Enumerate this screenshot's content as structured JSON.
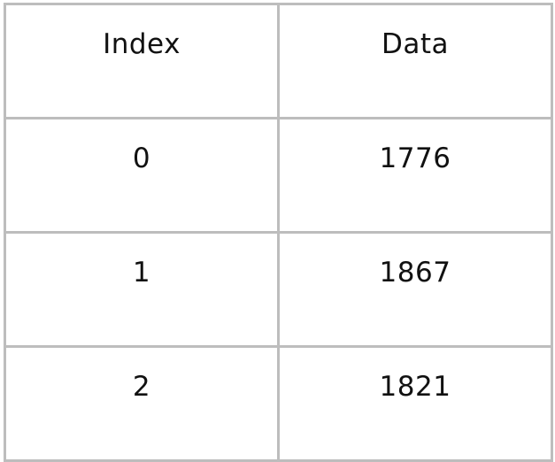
{
  "table": {
    "headers": [
      "Index",
      "Data"
    ],
    "rows": [
      [
        "0",
        "1776"
      ],
      [
        "1",
        "1867"
      ],
      [
        "2",
        "1821"
      ]
    ]
  },
  "colors": {
    "border": "#bdbdbd",
    "text": "#111111",
    "background": "#ffffff"
  }
}
